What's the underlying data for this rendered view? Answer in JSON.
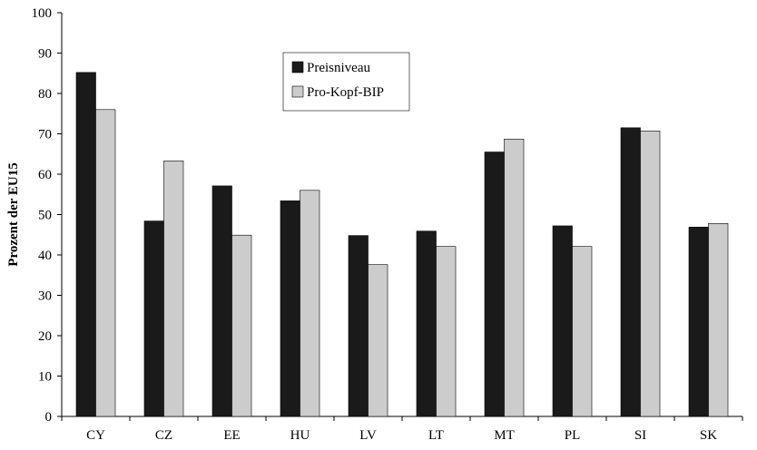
{
  "chart_data": {
    "type": "bar",
    "categories": [
      "CY",
      "CZ",
      "EE",
      "HU",
      "LV",
      "LT",
      "MT",
      "PL",
      "SI",
      "SK"
    ],
    "series": [
      {
        "name": "Preisniveau",
        "color": "#1a1a1a",
        "values": [
          85.2,
          48.4,
          57.1,
          53.4,
          44.8,
          45.9,
          65.5,
          47.2,
          71.5,
          46.9
        ]
      },
      {
        "name": "Pro-Kopf-BIP",
        "color": "#cccccc",
        "values": [
          76.0,
          63.3,
          44.9,
          56.0,
          37.6,
          42.1,
          68.7,
          42.1,
          70.7,
          47.8
        ]
      }
    ],
    "ylabel": "Prozent der EU15",
    "xlabel": "",
    "ylim": [
      0,
      100
    ],
    "yticks": [
      0,
      10,
      20,
      30,
      40,
      50,
      60,
      70,
      80,
      90,
      100
    ],
    "grid": false,
    "legend_position": "top-center"
  }
}
